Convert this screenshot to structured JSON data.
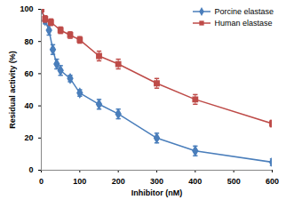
{
  "chart_data": {
    "type": "line",
    "x_label": "Inhibitor (nM)",
    "y_label": "Residual activity (%)",
    "xlim": [
      0,
      600
    ],
    "xticks": [
      0,
      100,
      200,
      300,
      400,
      500,
      600
    ],
    "ylim": [
      0,
      100
    ],
    "yticks": [
      0,
      20,
      40,
      60,
      80,
      100
    ],
    "grid": false,
    "legend": "top-right",
    "series": [
      {
        "name": "Porcine elastase",
        "color": "#4a7ebb",
        "marker": "diamond",
        "line_style": "solid",
        "x": [
          0,
          10,
          20,
          30,
          40,
          50,
          75,
          100,
          150,
          200,
          300,
          400,
          600
        ],
        "values": [
          100,
          93,
          87,
          75,
          66,
          62,
          57,
          48,
          41,
          35,
          20,
          12,
          5
        ],
        "errors": [
          1,
          2,
          3,
          3,
          3,
          3,
          2,
          2,
          3,
          3,
          3,
          3,
          2
        ]
      },
      {
        "name": "Human elastase",
        "color": "#be4b48",
        "marker": "square",
        "line_style": "solid",
        "x": [
          0,
          10,
          25,
          50,
          75,
          100,
          150,
          200,
          300,
          400,
          600
        ],
        "values": [
          100,
          94,
          92,
          87,
          84,
          81,
          71,
          66,
          54,
          44,
          29
        ],
        "errors": [
          1,
          2,
          2,
          2,
          2,
          2,
          3,
          3,
          3,
          3,
          2
        ]
      }
    ]
  }
}
